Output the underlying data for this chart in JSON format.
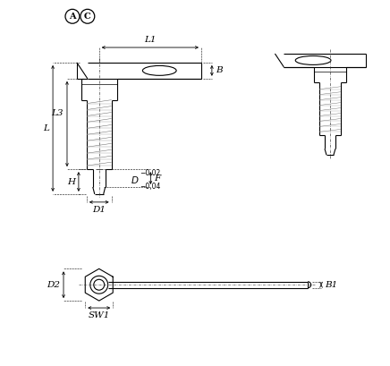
{
  "bg_color": "#ffffff",
  "line_color": "#000000",
  "figsize": [
    4.36,
    4.09
  ],
  "dpi": 100,
  "labels": {
    "A": "A",
    "C": "C",
    "L1": "L1",
    "B": "B",
    "L": "L",
    "L3": "L3",
    "H": "H",
    "F": "F",
    "D1": "D1",
    "D2": "D2",
    "SW1": "SW1",
    "B1": "B1"
  }
}
